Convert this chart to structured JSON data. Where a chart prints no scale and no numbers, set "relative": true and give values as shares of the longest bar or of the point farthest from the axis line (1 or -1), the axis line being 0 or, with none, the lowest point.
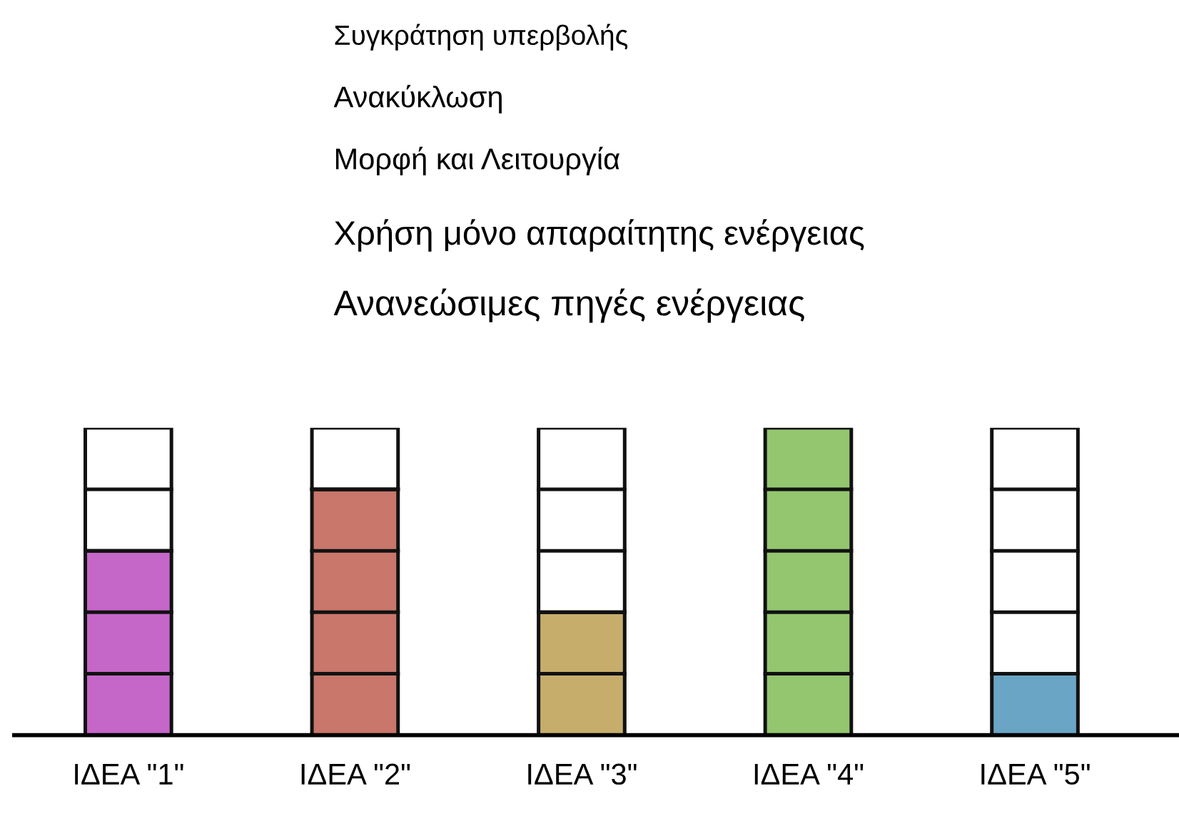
{
  "chart_data": {
    "type": "bar",
    "relative": true,
    "stacked": true,
    "legend": false,
    "grid": false,
    "categories": [
      "ΙΔΕΑ \"1\"",
      "ΙΔΕΑ \"2\"",
      "ΙΔΕΑ \"3\"",
      "ΙΔΕΑ \"4\"",
      "ΙΔΕΑ \"5\""
    ],
    "series": [
      {
        "colors": [
          "#c566c9",
          "#c9766b",
          "#c6ad6c",
          "#93c66f",
          "#6aa5c6"
        ],
        "values": [
          0.6,
          0.8,
          0.4,
          1,
          0.2
        ]
      },
      {
        "color": "#ffffff",
        "values": [
          0.4,
          0.2,
          0.6,
          0,
          0.8
        ]
      }
    ],
    "annotations": [
      "Συγκράτηση υπερβολής",
      "Ανακύκλωση",
      "Μορφή και Λειτουργία",
      "Χρήση μόνο απαραίτητης ενέργειας",
      "Ανανεώσιμες πηγές ενέργειας"
    ]
  }
}
